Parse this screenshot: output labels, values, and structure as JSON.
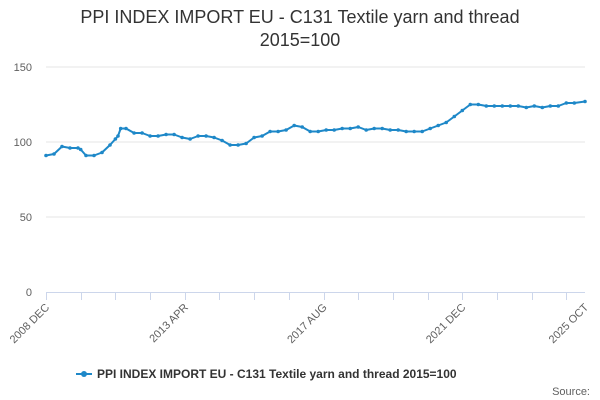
{
  "chart_data": {
    "type": "line",
    "title_lines": [
      "PPI INDEX IMPORT EU - C131 Textile yarn and thread",
      "2015=100"
    ],
    "xlabel": "",
    "ylabel": "",
    "ylim": [
      0,
      150
    ],
    "yticks": [
      0,
      50,
      100,
      150
    ],
    "x_tick_labels": [
      "2008 DEC",
      "2013 APR",
      "2017 AUG",
      "2021 DEC",
      "2025 OCT"
    ],
    "grid": "horizontal",
    "legend_position": "bottom-center",
    "credits": "Source:",
    "series": [
      {
        "name": "PPI INDEX IMPORT EU - C131 Textile yarn and thread 2015=100",
        "color": "#1e88c8",
        "x": [
          "2008-12",
          "2009-03",
          "2009-06",
          "2009-09",
          "2009-12",
          "2010-01",
          "2010-03",
          "2010-06",
          "2010-09",
          "2010-12",
          "2011-02",
          "2011-03",
          "2011-04",
          "2011-06",
          "2011-09",
          "2011-12",
          "2012-03",
          "2012-06",
          "2012-09",
          "2012-12",
          "2013-03",
          "2013-06",
          "2013-09",
          "2013-12",
          "2014-03",
          "2014-06",
          "2014-09",
          "2014-12",
          "2015-03",
          "2015-06",
          "2015-09",
          "2015-12",
          "2016-03",
          "2016-06",
          "2016-09",
          "2016-12",
          "2017-03",
          "2017-06",
          "2017-09",
          "2017-12",
          "2018-03",
          "2018-06",
          "2018-09",
          "2018-12",
          "2019-03",
          "2019-06",
          "2019-09",
          "2019-12",
          "2020-03",
          "2020-06",
          "2020-09",
          "2020-12",
          "2021-03",
          "2021-06",
          "2021-09",
          "2021-12",
          "2022-03",
          "2022-06",
          "2022-09",
          "2022-12",
          "2023-03",
          "2023-06",
          "2023-09",
          "2023-12",
          "2024-03",
          "2024-06",
          "2024-09",
          "2024-12",
          "2025-03",
          "2025-06",
          "2025-10"
        ],
        "values": [
          91,
          92,
          97,
          96,
          96,
          95,
          91,
          91,
          93,
          98,
          102,
          104,
          109,
          109,
          106,
          106,
          104,
          104,
          105,
          105,
          103,
          102,
          104,
          104,
          103,
          101,
          98,
          98,
          99,
          103,
          104,
          107,
          107,
          108,
          111,
          110,
          107,
          107,
          108,
          108,
          109,
          109,
          110,
          108,
          109,
          109,
          108,
          108,
          107,
          107,
          107,
          109,
          111,
          113,
          117,
          121,
          125,
          125,
          124,
          124,
          124,
          124,
          124,
          123,
          124,
          123,
          124,
          124,
          126,
          126,
          127
        ]
      }
    ]
  }
}
